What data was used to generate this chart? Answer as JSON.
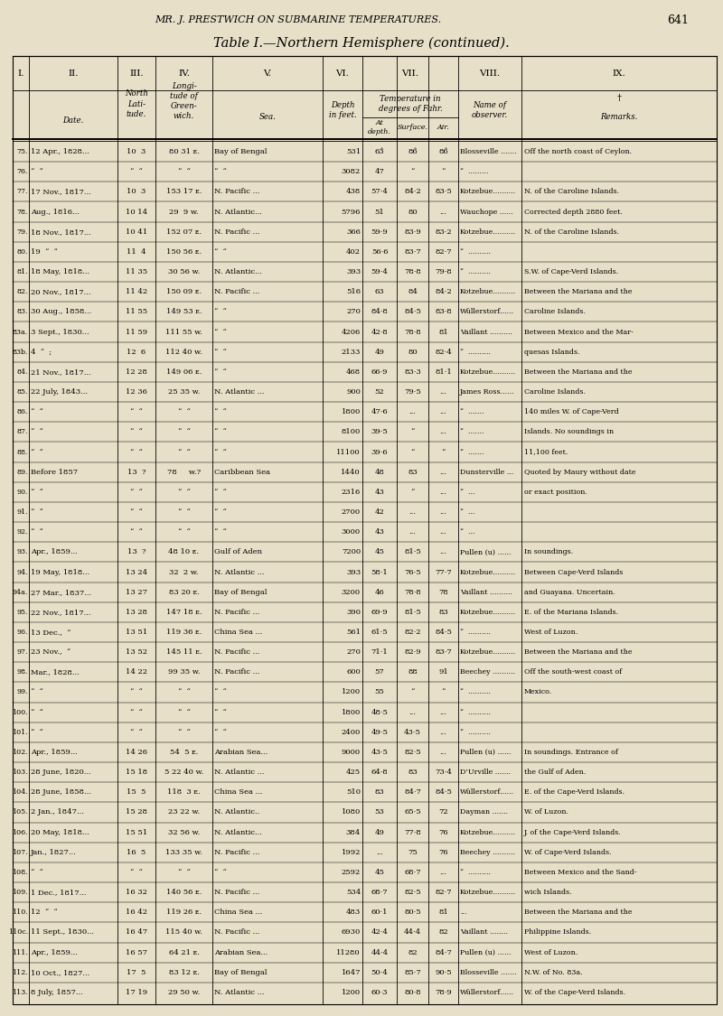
{
  "title_line1": "MR. J. PRESTWICH ON SUBMARINE TEMPERATURES.",
  "title_page": "641",
  "title_line2": "Table I.—Northern Hemisphere (continued).",
  "bg_color": "#e8dfc8",
  "rows": [
    [
      "75.",
      "12 Apr., 1828...",
      "10  3",
      "80 31 ᴇ.",
      "Bay of Bengal",
      "531",
      "63̂",
      "86̂",
      "86̂",
      "Blosseville .......",
      "Off the north coast of Ceylon."
    ],
    [
      "76.",
      "“  “",
      "“  “",
      "“  “",
      "“  “",
      "3082",
      "47",
      "“",
      "“",
      "“  .........",
      ""
    ],
    [
      "77.",
      "17 Nov., 1817...",
      "10  3",
      "153 17 ᴇ.",
      "N. Pacific ...",
      "438",
      "57·4",
      "84·2",
      "83·5",
      "Kotzebue..........",
      "N. of the Caroline Islands."
    ],
    [
      "78.",
      "Aug., 1816...",
      "10 14",
      "29  9 w.",
      "N. Atlantic...",
      "5796",
      "51",
      "80",
      "...",
      "Wauchope ......",
      "Corrected depth 2880 feet."
    ],
    [
      "79.",
      "18 Nov., 1817...",
      "10 41",
      "152 07 ᴇ.",
      "N. Pacific ...",
      "366",
      "59·9",
      "83·9",
      "83·2",
      "Kotzebue..........",
      "N. of the Caroline Islands."
    ],
    [
      "80.",
      "19  “  “",
      "11  4",
      "150 56 ᴇ.",
      "“  “",
      "402",
      "56·6",
      "83·7",
      "82·7",
      "“  ..........",
      ""
    ],
    [
      "81.",
      "18 May, 1818...",
      "11 35",
      "30 56 w.",
      "N. Atlantic...",
      "393",
      "59·4",
      "78·8",
      "79·8",
      "“  ..........",
      "S.W. of Cape-Verd Islands."
    ],
    [
      "82.",
      "20 Nov., 1817...",
      "11 42",
      "150 09 ᴇ.",
      "N. Pacific ...",
      "516",
      "63",
      "84",
      "84·2",
      "Kotzebue..........",
      "Between the Mariana and the"
    ],
    [
      "83.",
      "30 Aug., 1858...",
      "11 55",
      "149 53 ᴇ.",
      "“  “",
      "270",
      "84·8",
      "84·5",
      "83·8",
      "Wüllerstorf......",
      "Caroline Islands."
    ],
    [
      "83a.",
      "3 Sept., 1830...",
      "11 59",
      "111 55 w.",
      "“  “",
      "4206",
      "42·8",
      "78·8",
      "81",
      "Vaillant ..........",
      "Between Mexico and the Mar-"
    ],
    [
      "83b.",
      "4  “  ;",
      "12  6",
      "112 40 w.",
      "“  “",
      "2133",
      "49",
      "80",
      "82·4",
      "“  ..........",
      "quesas Islands."
    ],
    [
      "84.",
      "21 Nov., 1817...",
      "12 28",
      "149 06 ᴇ.",
      "“  “",
      "468",
      "66·9",
      "83·3",
      "81·1",
      "Kotzebue..........",
      "Between the Mariana and the"
    ],
    [
      "85.",
      "22 July, 1843...",
      "12 36",
      "25 35 w.",
      "N. Atlantic ...",
      "900",
      "52",
      "79·5",
      "...",
      "James Ross......",
      "Caroline Islands."
    ],
    [
      "86.",
      "“  “",
      "“  “",
      "“  “",
      "“  “",
      "1800",
      "47·6",
      "...",
      "...",
      "“  .......",
      "140 miles W. of Cape-Verd"
    ],
    [
      "87.",
      "“  “",
      "“  “",
      "“  “",
      "“  “",
      "8100",
      "39·5",
      "“",
      "...",
      "“  .......",
      "Islands. No soundings in"
    ],
    [
      "88.",
      "“  “",
      "“  “",
      "“  “",
      "“  “",
      "11100",
      "39·6",
      "“",
      "“",
      "“  .......",
      "11,100 feet."
    ],
    [
      "89.",
      "Before 1857",
      "13  ?",
      "78     w.?",
      "Caribbean Sea",
      "1440",
      "48",
      "83",
      "...",
      "Dunsterville ...",
      "Quoted by Maury without date"
    ],
    [
      "90.",
      "“  “",
      "“  “",
      "“  “",
      "“  “",
      "2316",
      "43",
      "“",
      "...",
      "“  ...",
      "or exact position."
    ],
    [
      "91.",
      "“  “",
      "“  “",
      "“  “",
      "“  “",
      "2700",
      "42",
      "...",
      "...",
      "“  ...",
      ""
    ],
    [
      "92.",
      "“  “",
      "“  “",
      "“  “",
      "“  “",
      "3000",
      "43",
      "...",
      "...",
      "“  ...",
      ""
    ],
    [
      "93.",
      "Apr., 1859...",
      "13  ?",
      "48 10 ᴇ.",
      "Gulf of Aden",
      "7200",
      "45",
      "81·5",
      "...",
      "Pullen (u) ......",
      "In soundings."
    ],
    [
      "94.",
      "19 May, 1818...",
      "13 24",
      "32  2 w.",
      "N. Atlantic ...",
      "393",
      "58·1",
      "76·5",
      "77·7",
      "Kotzebue..........",
      "Between Cape-Verd Islands"
    ],
    [
      "94a.",
      "27 Mar., 1837...",
      "13 27",
      "83 20 ᴇ.",
      "Bay of Bengal",
      "3200",
      "46",
      "78·8",
      "78",
      "Vaillant ..........",
      "and Guayana. Uncertain."
    ],
    [
      "95.",
      "22 Nov., 1817...",
      "13 28",
      "147 18 ᴇ.",
      "N. Pacific ...",
      "390",
      "69·9",
      "81·5",
      "83",
      "Kotzebue..........",
      "E. of the Mariana Islands."
    ],
    [
      "96.",
      "13 Dec.,  “",
      "13 51",
      "119 36 ᴇ.",
      "China Sea ...",
      "561",
      "61·5",
      "82·2",
      "84·5",
      "“  ..........",
      "West of Luzon."
    ],
    [
      "97.",
      "23 Nov.,  “",
      "13 52",
      "145 11 ᴇ.",
      "N. Pacific ...",
      "270",
      "71·1",
      "82·9",
      "83·7",
      "Kotzebue..........",
      "Between the Mariana and the"
    ],
    [
      "98.",
      "Mar., 1828...",
      "14 22",
      "99 35 w.",
      "N. Pacific ...",
      "600",
      "57",
      "88",
      "91",
      "Beechey ..........",
      "Off the south-west coast of"
    ],
    [
      "99.",
      "“  “",
      "“  “",
      "“  “",
      "“  “",
      "1200",
      "55",
      "“",
      "“",
      "“  ..........",
      "Mexico."
    ],
    [
      "100.",
      "“  “",
      "“  “",
      "“  “",
      "“  “",
      "1800",
      "48·5",
      "...",
      "...",
      "“  ..........",
      ""
    ],
    [
      "101.",
      "“  “",
      "“  “",
      "“  “",
      "“  “",
      "2400",
      "49·5",
      "43·5",
      "...",
      "“  ..........",
      ""
    ],
    [
      "102.",
      "Apr., 1859...",
      "14 26",
      "54  5 ᴇ.",
      "Arabian Sea...",
      "9000",
      "43·5",
      "82·5",
      "...",
      "Pullen (u) ......",
      "In soundings. Entrance of"
    ],
    [
      "103.",
      "28 June, 1820...",
      "15 18",
      "5 22 40 w.",
      "N. Atlantic ...",
      "425",
      "64·8",
      "83",
      "73·4",
      "D’Urville .......",
      "the Gulf of Aden."
    ],
    [
      "104.",
      "28 June, 1858...",
      "15  5",
      "118  3 ᴇ.",
      "China Sea ...",
      "510",
      "83",
      "84·7",
      "84·5",
      "Wüllerstorf......",
      "E. of the Cape-Verd Islands."
    ],
    [
      "105.",
      "2 Jan., 1847...",
      "15 28",
      "23 22 w.",
      "N. Atlantic..",
      "1080",
      "53",
      "65·5",
      "72",
      "Dayman .......",
      "W. of Luzon."
    ],
    [
      "106.",
      "20 May, 1818...",
      "15 51",
      "32 56 w.",
      "N. Atlantic...",
      "384",
      "49",
      "77·8",
      "76",
      "Kotzebue..........",
      "J. of the Cape-Verd Islands."
    ],
    [
      "107.",
      "Jan., 1827...",
      "16  5",
      "133 35 w.",
      "N. Pacific ...",
      "1992",
      "...",
      "75",
      "76",
      "Beechey ..........",
      "W. of Cape-Verd Islands."
    ],
    [
      "108.",
      "“  “",
      "“  “",
      "“  “",
      "“  “",
      "2592",
      "45",
      "68·7",
      "...",
      "“  ..........",
      "Between Mexico and the Sand-"
    ],
    [
      "109.",
      "1 Dec., 1817...",
      "16 32",
      "140 56 ᴇ.",
      "N. Pacific ...",
      "534",
      "68·7",
      "82·5",
      "82·7",
      "Kotzebue..........",
      "wich Islands."
    ],
    [
      "110.",
      "12  “  “",
      "16 42",
      "119 26 ᴇ.",
      "China Sea ...",
      "483",
      "60·1",
      "80·5",
      "81",
      "...",
      "Between the Mariana and the"
    ],
    [
      "110c.",
      "11 Sept., 1830...",
      "16 47",
      "115 40 w.",
      "N. Pacific ...",
      "6930",
      "42·4",
      "44·4",
      "82",
      "Vaillant ........",
      "Philippine Islands."
    ],
    [
      "111.",
      "Apr., 1859...",
      "16 57",
      "64 21 ᴇ.",
      "Arabian Sea...",
      "11280",
      "44·4",
      "82",
      "84·7",
      "Pullen (u) ......",
      "West of Luzon."
    ],
    [
      "112.",
      "10 Oct., 1827...",
      "17  5",
      "83 12 ᴇ.",
      "Bay of Bengal",
      "1647",
      "50·4",
      "85·7",
      "90·5",
      "Blosseville .......",
      "N.W. of No. 83a."
    ],
    [
      "113.",
      "8 July, 1857...",
      "17 19",
      "29 50 w.",
      "N. Atlantic ...",
      "1200",
      "60·3",
      "80·8",
      "78·9",
      "Wüllerstorf......",
      "W. of the Cape-Verd Islands."
    ]
  ]
}
